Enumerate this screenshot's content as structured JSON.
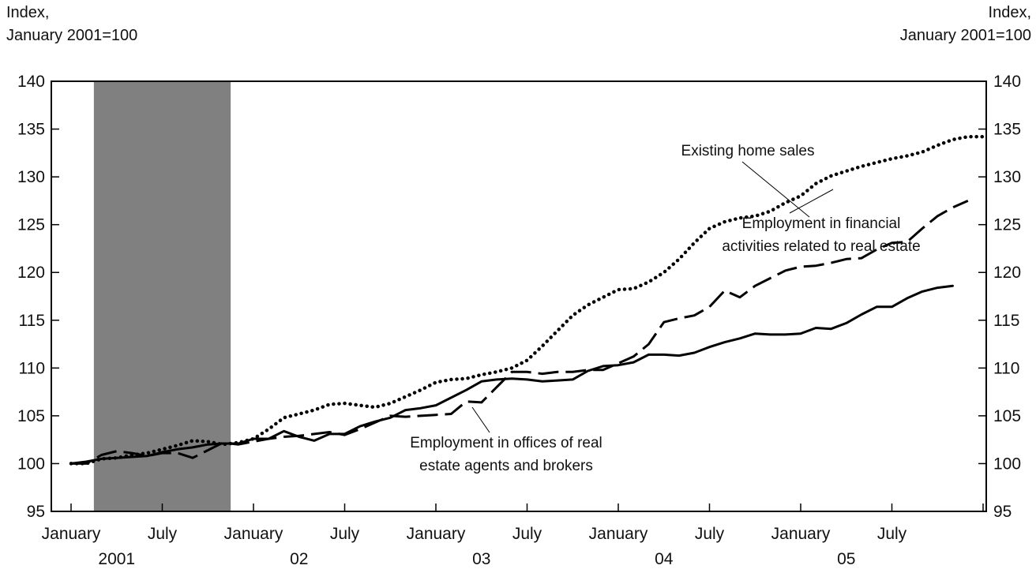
{
  "chart_data": {
    "type": "line",
    "y_axis_left": {
      "title_line1": "Index,",
      "title_line2": "January 2001=100"
    },
    "y_axis_right": {
      "title_line1": "Index,",
      "title_line2": "January 2001=100"
    },
    "ylim": [
      95,
      140
    ],
    "y_ticks": [
      95,
      100,
      105,
      110,
      115,
      120,
      125,
      130,
      135,
      140
    ],
    "xlim": [
      0,
      62
    ],
    "x_ticks": [
      {
        "month": 0,
        "label": "January"
      },
      {
        "month": 6,
        "label": "July"
      },
      {
        "month": 12,
        "label": "January"
      },
      {
        "month": 18,
        "label": "July"
      },
      {
        "month": 24,
        "label": "January"
      },
      {
        "month": 30,
        "label": "July"
      },
      {
        "month": 36,
        "label": "January"
      },
      {
        "month": 42,
        "label": "July"
      },
      {
        "month": 48,
        "label": "January"
      },
      {
        "month": 54,
        "label": "July"
      }
    ],
    "year_labels": [
      {
        "month": 3,
        "label": "2001"
      },
      {
        "month": 15,
        "label": "02"
      },
      {
        "month": 27,
        "label": "03"
      },
      {
        "month": 39,
        "label": "04"
      },
      {
        "month": 51,
        "label": "05"
      }
    ],
    "recession_shading": {
      "start_month": 1.5,
      "end_month": 10.5,
      "color": "#808080"
    },
    "x_unit": "months since January 2001",
    "series": [
      {
        "name": "Existing home sales",
        "style": "dotted",
        "values": [
          100.0,
          100.0,
          100.5,
          100.6,
          100.9,
          101.1,
          101.5,
          101.9,
          102.4,
          102.3,
          102.0,
          102.2,
          102.6,
          103.6,
          104.8,
          105.2,
          105.6,
          106.2,
          106.3,
          106.1,
          105.9,
          106.3,
          107.0,
          107.7,
          108.5,
          108.8,
          108.9,
          109.3,
          109.6,
          110.0,
          110.8,
          112.3,
          113.9,
          115.5,
          116.6,
          117.4,
          118.2,
          118.3,
          119.0,
          120.0,
          121.4,
          123.1,
          124.6,
          125.3,
          125.7,
          125.9,
          126.4,
          127.3,
          128.0,
          129.3,
          130.1,
          130.6,
          131.1,
          131.5,
          131.9,
          132.2,
          132.6,
          133.3,
          133.9,
          134.2,
          134.2
        ],
        "label": {
          "text": "Existing home sales"
        }
      },
      {
        "name": "Employment in offices of real estate agents and brokers",
        "style": "dashed",
        "values": [
          100.0,
          100.0,
          100.9,
          101.3,
          101.1,
          100.8,
          101.1,
          101.1,
          100.6,
          101.4,
          102.2,
          102.0,
          102.3,
          102.6,
          102.8,
          102.9,
          103.1,
          103.3,
          103.0,
          103.6,
          104.3,
          105.0,
          104.9,
          105.0,
          105.1,
          105.2,
          106.5,
          106.4,
          108.0,
          109.6,
          109.6,
          109.4,
          109.6,
          109.6,
          109.8,
          109.8,
          110.5,
          111.2,
          112.5,
          114.8,
          115.2,
          115.5,
          116.4,
          118.1,
          117.4,
          118.6,
          119.4,
          120.2,
          120.6,
          120.7,
          121.0,
          121.4,
          121.5,
          122.4,
          123.1,
          123.2,
          124.6,
          125.9,
          126.8,
          127.5
        ],
        "label": {
          "text_line1": "Employment in offices of real",
          "text_line2": "estate agents and brokers"
        }
      },
      {
        "name": "Employment in financial activities related to real estate",
        "style": "solid",
        "values": [
          100.0,
          100.2,
          100.5,
          100.6,
          100.7,
          100.8,
          101.2,
          101.5,
          101.7,
          102.0,
          102.1,
          102.1,
          102.6,
          102.6,
          103.4,
          102.8,
          102.4,
          103.1,
          103.1,
          103.9,
          104.4,
          104.8,
          105.6,
          105.8,
          106.1,
          106.9,
          107.7,
          108.6,
          108.8,
          108.9,
          108.8,
          108.6,
          108.7,
          108.8,
          109.7,
          110.2,
          110.3,
          110.6,
          111.4,
          111.4,
          111.3,
          111.6,
          112.2,
          112.7,
          113.1,
          113.6,
          113.5,
          113.5,
          113.6,
          114.2,
          114.1,
          114.7,
          115.6,
          116.4,
          116.4,
          117.3,
          118.0,
          118.4,
          118.6
        ],
        "label": {
          "text_line1": "Employment in financial",
          "text_line2": "activities related to real estate"
        }
      }
    ]
  }
}
